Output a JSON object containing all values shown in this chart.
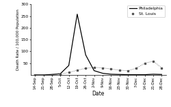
{
  "title": "",
  "xlabel": "Date",
  "ylabel": "Death Rate / 100,000 Population",
  "ylim": [
    0,
    300
  ],
  "yticks": [
    50,
    100,
    150,
    200,
    250,
    300
  ],
  "dates": [
    "14-Sep",
    "21-Sep",
    "28-Sep",
    "5-Oct",
    "12-Oct",
    "19-Oct",
    "26-Oct",
    "2-Nov",
    "9-Nov",
    "16-Nov",
    "23-Nov",
    "30-Nov",
    "7-Dec",
    "14-Dec",
    "21-Dec",
    "28-Dec"
  ],
  "philadelphia": [
    0,
    0,
    2,
    5,
    40,
    258,
    85,
    18,
    7,
    3,
    2,
    1,
    1,
    1,
    3,
    2
  ],
  "st_louis": [
    0,
    0,
    1,
    4,
    10,
    20,
    28,
    32,
    30,
    25,
    20,
    18,
    28,
    50,
    58,
    30
  ],
  "philly_color": "#000000",
  "stlouis_color": "#555555",
  "background_color": "#ffffff",
  "philly_label": "Philadelphia",
  "stlouis_label": "St. Louis"
}
